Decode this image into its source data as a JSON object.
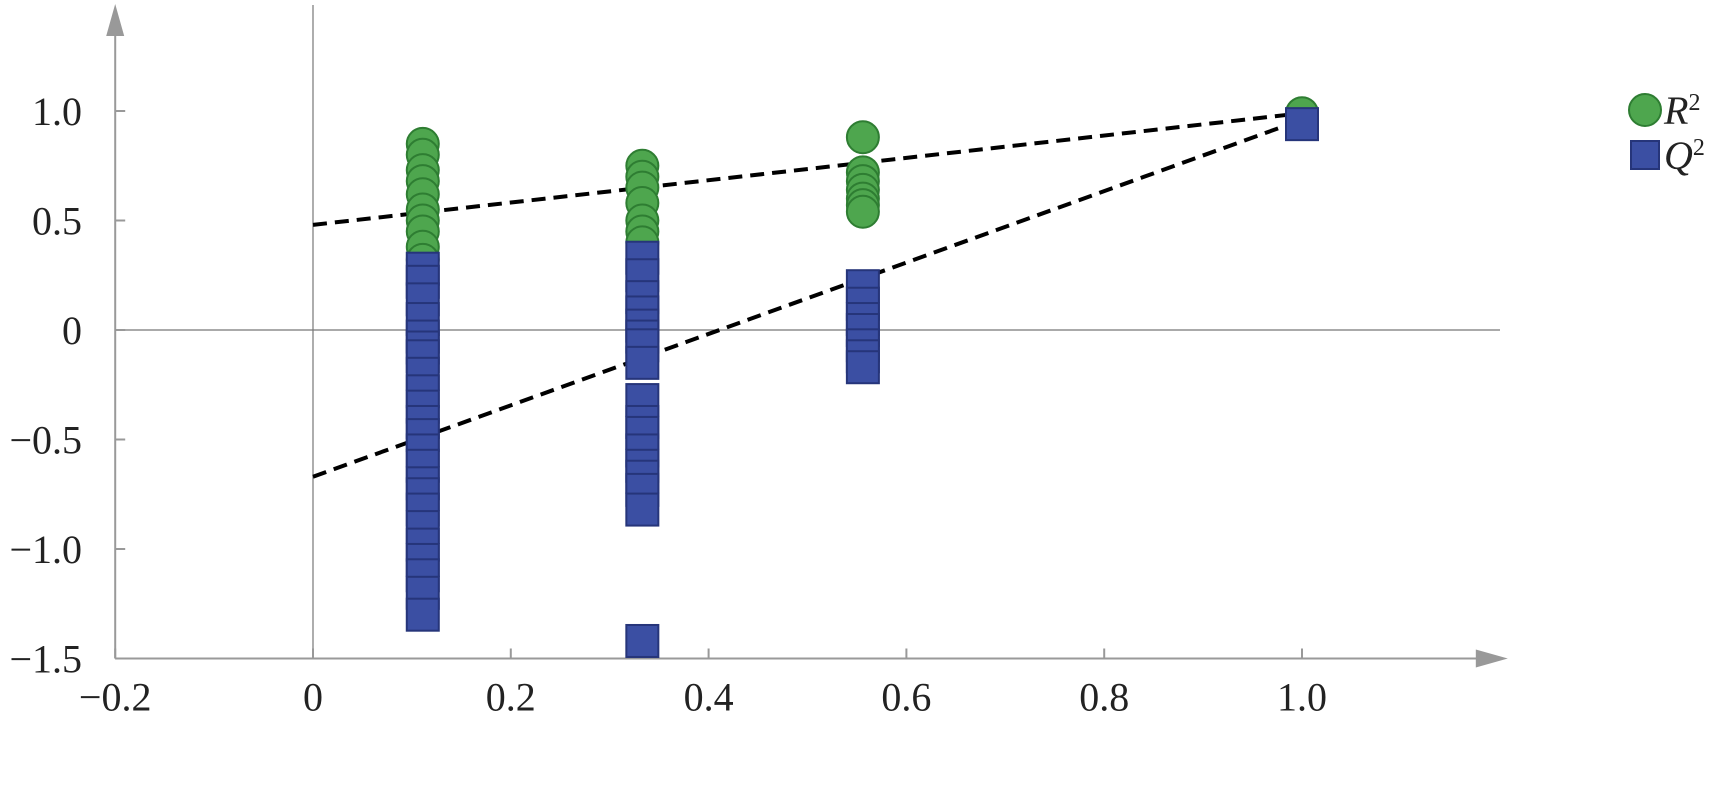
{
  "chart_data": {
    "type": "scatter",
    "title": "",
    "xlabel": "",
    "ylabel": "",
    "xlim": [
      -0.2,
      1.2
    ],
    "ylim": [
      -1.5,
      1.48
    ],
    "grid": false,
    "legend_position": "top-right",
    "x_ticks": [
      {
        "v": -0.2,
        "label": "−0.2"
      },
      {
        "v": 0,
        "label": "0"
      },
      {
        "v": 0.2,
        "label": "0.2"
      },
      {
        "v": 0.4,
        "label": "0.4"
      },
      {
        "v": 0.6,
        "label": "0.6"
      },
      {
        "v": 0.8,
        "label": "0.8"
      },
      {
        "v": 1.0,
        "label": "1.0"
      }
    ],
    "y_ticks": [
      {
        "v": 1.0,
        "label": "1.0"
      },
      {
        "v": 0.5,
        "label": "0.5"
      },
      {
        "v": 0,
        "label": "0"
      },
      {
        "v": -0.5,
        "label": "−0.5"
      },
      {
        "v": -1.0,
        "label": "−1.0"
      },
      {
        "v": -1.5,
        "label": "−1.5"
      }
    ],
    "series": [
      {
        "name": "R2",
        "label": "R",
        "sup": "2",
        "marker": "circle",
        "color": "#4ea64e",
        "edge": "#2e7d32",
        "points": [
          [
            0.111,
            0.85
          ],
          [
            0.111,
            0.8
          ],
          [
            0.111,
            0.73
          ],
          [
            0.111,
            0.68
          ],
          [
            0.111,
            0.62
          ],
          [
            0.111,
            0.55
          ],
          [
            0.111,
            0.5
          ],
          [
            0.111,
            0.45
          ],
          [
            0.111,
            0.38
          ],
          [
            0.111,
            0.32
          ],
          [
            0.333,
            0.75
          ],
          [
            0.333,
            0.7
          ],
          [
            0.333,
            0.65
          ],
          [
            0.333,
            0.58
          ],
          [
            0.333,
            0.5
          ],
          [
            0.333,
            0.45
          ],
          [
            0.333,
            0.4
          ],
          [
            0.556,
            0.88
          ],
          [
            0.556,
            0.72
          ],
          [
            0.556,
            0.68
          ],
          [
            0.556,
            0.64
          ],
          [
            0.556,
            0.6
          ],
          [
            0.556,
            0.57
          ],
          [
            0.556,
            0.54
          ],
          [
            1.0,
            0.99
          ]
        ],
        "fit_line": {
          "intercept": 0.48,
          "end": [
            1.0,
            0.99
          ]
        }
      },
      {
        "name": "Q2",
        "label": "Q",
        "sup": "2",
        "marker": "square",
        "color": "#3b4fa3",
        "edge": "#26357a",
        "points": [
          [
            0.111,
            0.28
          ],
          [
            0.111,
            0.22
          ],
          [
            0.111,
            0.14
          ],
          [
            0.111,
            0.05
          ],
          [
            0.111,
            -0.03
          ],
          [
            0.111,
            -0.08
          ],
          [
            0.111,
            -0.12
          ],
          [
            0.111,
            -0.2
          ],
          [
            0.111,
            -0.28
          ],
          [
            0.111,
            -0.35
          ],
          [
            0.111,
            -0.42
          ],
          [
            0.111,
            -0.48
          ],
          [
            0.111,
            -0.55
          ],
          [
            0.111,
            -0.62
          ],
          [
            0.111,
            -0.7
          ],
          [
            0.111,
            -0.75
          ],
          [
            0.111,
            -0.82
          ],
          [
            0.111,
            -0.9
          ],
          [
            0.111,
            -0.98
          ],
          [
            0.111,
            -1.05
          ],
          [
            0.111,
            -1.12
          ],
          [
            0.111,
            -1.2
          ],
          [
            0.111,
            -1.3
          ],
          [
            0.333,
            0.33
          ],
          [
            0.333,
            0.25
          ],
          [
            0.333,
            0.15
          ],
          [
            0.333,
            0.08
          ],
          [
            0.333,
            0.02
          ],
          [
            0.333,
            -0.03
          ],
          [
            0.333,
            -0.07
          ],
          [
            0.333,
            -0.15
          ],
          [
            0.333,
            -0.32
          ],
          [
            0.333,
            -0.42
          ],
          [
            0.333,
            -0.47
          ],
          [
            0.333,
            -0.55
          ],
          [
            0.333,
            -0.62
          ],
          [
            0.333,
            -0.67
          ],
          [
            0.333,
            -0.73
          ],
          [
            0.333,
            -0.82
          ],
          [
            0.333,
            -1.42
          ],
          [
            0.556,
            0.2
          ],
          [
            0.556,
            0.12
          ],
          [
            0.556,
            0.05
          ],
          [
            0.556,
            0.0
          ],
          [
            0.556,
            -0.07
          ],
          [
            0.556,
            -0.12
          ],
          [
            0.556,
            -0.17
          ],
          [
            1.0,
            0.94
          ]
        ],
        "fit_line": {
          "intercept": -0.67,
          "end": [
            1.0,
            0.96
          ]
        }
      }
    ]
  }
}
